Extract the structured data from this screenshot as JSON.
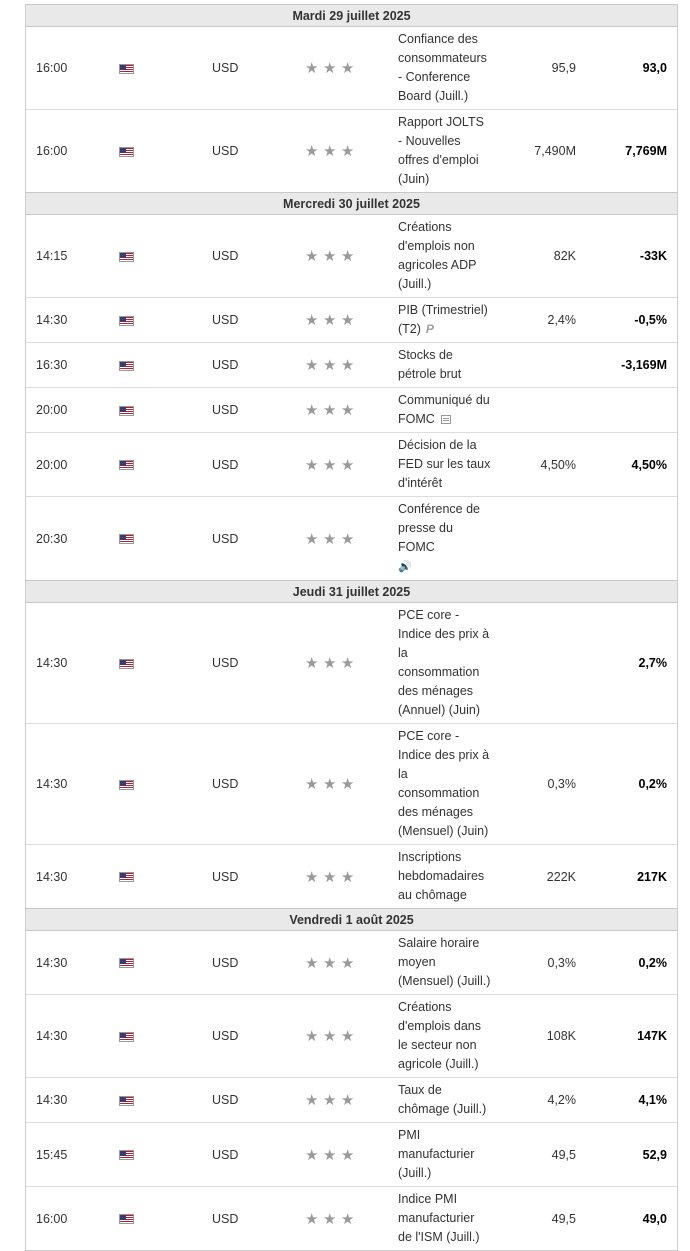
{
  "days": [
    {
      "label": "Mardi 29 juillet 2025",
      "events": [
        {
          "time": "16:00",
          "currency": "USD",
          "event": "Confiance des consommateurs - Conference Board (Juill.)",
          "actual": "95,9",
          "forecast": "93,0",
          "icon": ""
        },
        {
          "time": "16:00",
          "currency": "USD",
          "event": "Rapport JOLTS - Nouvelles offres d'emploi (Juin)",
          "actual": "7,490M",
          "forecast": "7,769M",
          "icon": ""
        }
      ]
    },
    {
      "label": "Mercredi 30 juillet 2025",
      "events": [
        {
          "time": "14:15",
          "currency": "USD",
          "event": "Créations d'emplois non agricoles ADP (Juill.)",
          "actual": "82K",
          "forecast": "-33K",
          "icon": ""
        },
        {
          "time": "14:30",
          "currency": "USD",
          "event": "PIB (Trimestriel) (T2)",
          "actual": "2,4%",
          "forecast": "-0,5%",
          "icon": "p-icon"
        },
        {
          "time": "16:30",
          "currency": "USD",
          "event": "Stocks de pétrole brut",
          "actual": "",
          "forecast": "-3,169M",
          "icon": ""
        },
        {
          "time": "20:00",
          "currency": "USD",
          "event": "Communiqué du FOMC",
          "actual": "",
          "forecast": "",
          "icon": "document-icon"
        },
        {
          "time": "20:00",
          "currency": "USD",
          "event": "Décision de la FED sur les taux d'intérêt",
          "actual": "4,50%",
          "forecast": "4,50%",
          "icon": ""
        },
        {
          "time": "20:30",
          "currency": "USD",
          "event": "Conférence de presse du FOMC",
          "actual": "",
          "forecast": "",
          "icon": "speaker-icon"
        }
      ]
    },
    {
      "label": "Jeudi 31 juillet 2025",
      "events": [
        {
          "time": "14:30",
          "currency": "USD",
          "event": "PCE core - Indice des prix à la consommation des ménages (Annuel) (Juin)",
          "actual": "",
          "forecast": "2,7%",
          "icon": ""
        },
        {
          "time": "14:30",
          "currency": "USD",
          "event": "PCE core - Indice des prix à la consommation des ménages (Mensuel) (Juin)",
          "actual": "0,3%",
          "forecast": "0,2%",
          "icon": ""
        },
        {
          "time": "14:30",
          "currency": "USD",
          "event": "Inscriptions hebdomadaires au chômage",
          "actual": "222K",
          "forecast": "217K",
          "icon": ""
        }
      ]
    },
    {
      "label": "Vendredi 1 août 2025",
      "events": [
        {
          "time": "14:30",
          "currency": "USD",
          "event": "Salaire horaire moyen (Mensuel) (Juill.)",
          "actual": "0,3%",
          "forecast": "0,2%",
          "icon": ""
        },
        {
          "time": "14:30",
          "currency": "USD",
          "event": "Créations d'emplois dans le secteur non agricole (Juill.)",
          "actual": "108K",
          "forecast": "147K",
          "icon": ""
        },
        {
          "time": "14:30",
          "currency": "USD",
          "event": "Taux de chômage (Juill.)",
          "actual": "4,2%",
          "forecast": "4,1%",
          "icon": ""
        },
        {
          "time": "15:45",
          "currency": "USD",
          "event": "PMI manufacturier (Juill.)",
          "actual": "49,5",
          "forecast": "52,9",
          "icon": ""
        },
        {
          "time": "16:00",
          "currency": "USD",
          "event": "Indice PMI manufacturier de l'ISM (Juill.)",
          "actual": "49,5",
          "forecast": "49,0",
          "icon": ""
        }
      ]
    }
  ],
  "colors": {
    "day_header_bg": "#e9e9e9",
    "star": "#9a9a9a",
    "border": "#dddddd"
  }
}
